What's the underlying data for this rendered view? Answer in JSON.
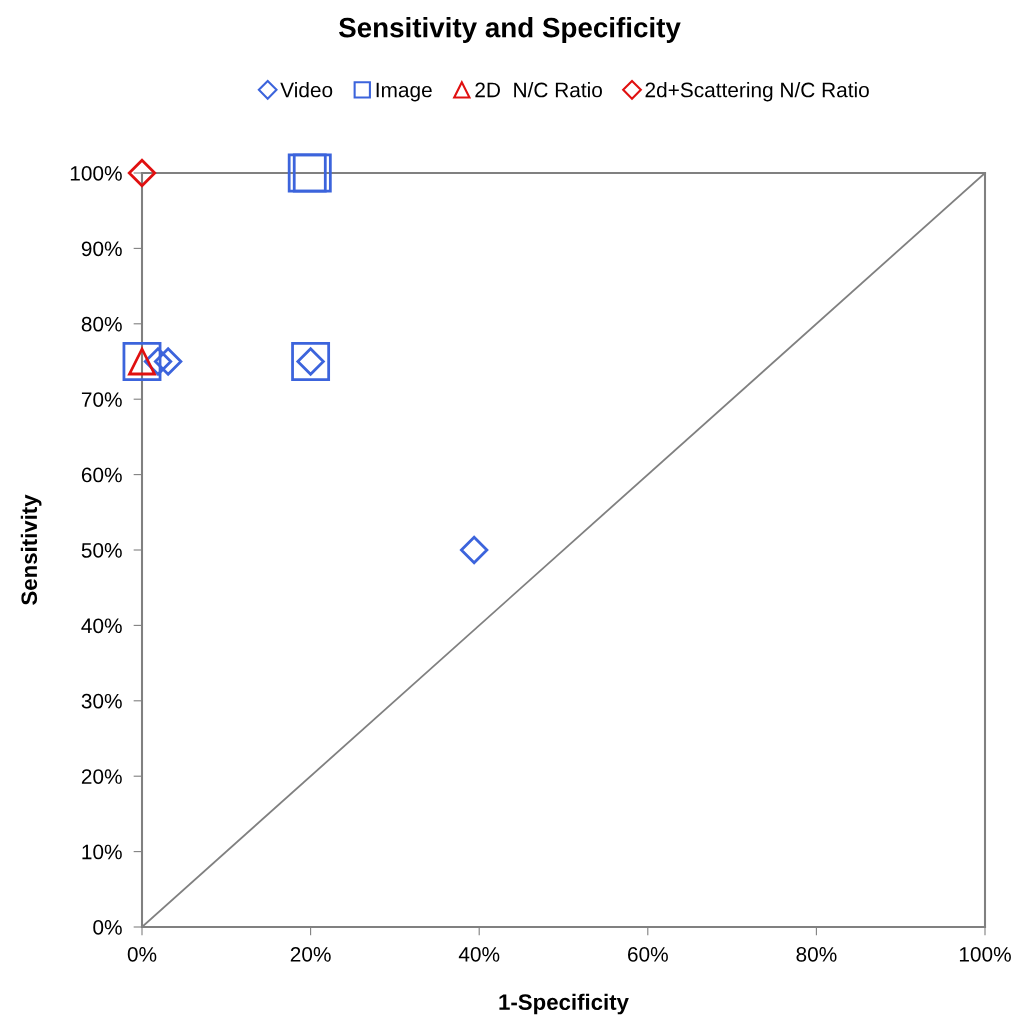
{
  "chart_data": {
    "type": "scatter",
    "title": "Sensitivity and Specificity",
    "xlabel": "1-Specificity",
    "ylabel": "Sensitivity",
    "xlim": [
      0,
      100
    ],
    "ylim": [
      0,
      100
    ],
    "xticks": [
      {
        "value": 0,
        "label": "0%"
      },
      {
        "value": 20,
        "label": "20%"
      },
      {
        "value": 40,
        "label": "40%"
      },
      {
        "value": 60,
        "label": "60%"
      },
      {
        "value": 80,
        "label": "80%"
      },
      {
        "value": 100,
        "label": "100%"
      }
    ],
    "yticks": [
      {
        "value": 0,
        "label": "0%"
      },
      {
        "value": 10,
        "label": "10%"
      },
      {
        "value": 20,
        "label": "20%"
      },
      {
        "value": 30,
        "label": "30%"
      },
      {
        "value": 40,
        "label": "40%"
      },
      {
        "value": 50,
        "label": "50%"
      },
      {
        "value": 60,
        "label": "60%"
      },
      {
        "value": 70,
        "label": "70%"
      },
      {
        "value": 80,
        "label": "80%"
      },
      {
        "value": 90,
        "label": "90%"
      },
      {
        "value": 100,
        "label": "100%"
      }
    ],
    "grid": false,
    "legend": "top",
    "series": [
      {
        "type": "line",
        "color": "#808080",
        "x": [
          0,
          100
        ],
        "values": [
          0,
          100
        ],
        "marker": "none"
      },
      {
        "name": "Video",
        "color": "#3c64dc",
        "marker": "diamond",
        "x": [
          1.9,
          3.1,
          20,
          39.4
        ],
        "values": [
          75,
          75,
          75,
          50
        ]
      },
      {
        "name": "Image",
        "color": "#3c64dc",
        "marker": "square",
        "x": [
          0,
          19.6,
          20.2,
          20
        ],
        "values": [
          75,
          100,
          100,
          75
        ]
      },
      {
        "name": "2D  N/C Ratio",
        "color": "#e01010",
        "marker": "triangle",
        "x": [
          0
        ],
        "values": [
          75
        ]
      },
      {
        "name": "2d+Scattering N/C Ratio",
        "color": "#e01010",
        "marker": "diamond",
        "x": [
          0
        ],
        "values": [
          100
        ]
      }
    ]
  }
}
